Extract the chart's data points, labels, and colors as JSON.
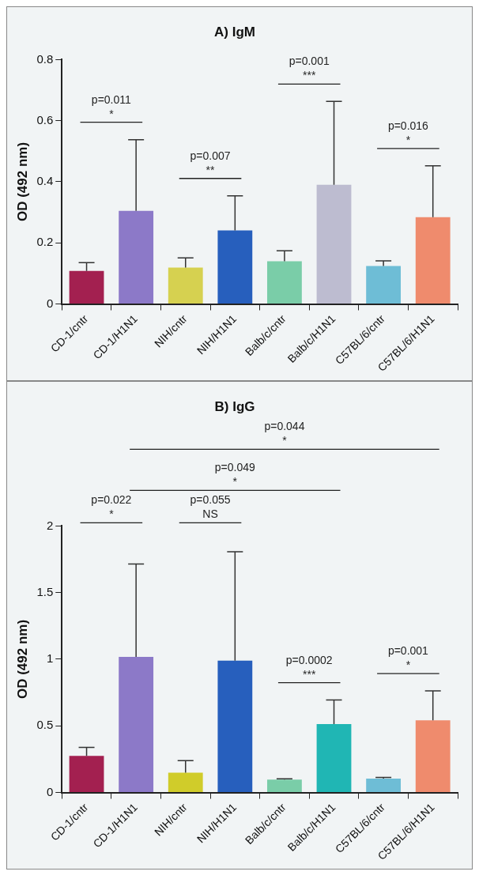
{
  "chart_data": [
    {
      "type": "bar",
      "title": "A) IgM",
      "ylabel": "OD (492 nm)",
      "categories": [
        "CD-1/cntr",
        "CD-1/H1N1",
        "NIH/cntr",
        "NIH/H1N1",
        "Balb/c/cntr",
        "Balb/c/H1N1",
        "C57BL/6/cntr",
        "C57BL/6/H1N1"
      ],
      "values": [
        0.108,
        0.305,
        0.119,
        0.241,
        0.14,
        0.39,
        0.124,
        0.284
      ],
      "colors": [
        "#a32050",
        "#8c79c8",
        "#d6d150",
        "#275fbd",
        "#7acda8",
        "#bdbcd0",
        "#6ebdd6",
        "#ef8b6d"
      ],
      "errors": [
        [
          0.108,
          0.135
        ],
        [
          0.305,
          0.538
        ],
        [
          0.119,
          0.151
        ],
        [
          0.241,
          0.354
        ],
        [
          0.14,
          0.174
        ],
        [
          0.39,
          0.663
        ],
        [
          0.124,
          0.141
        ],
        [
          0.284,
          0.452
        ]
      ],
      "ylim": [
        0,
        0.8
      ],
      "yticks": [
        0,
        0.2,
        0.4,
        0.6,
        0.8
      ],
      "grid": false,
      "legend": false,
      "annotations": [
        "p=0.011\n*",
        "p=0.007\n**",
        "p=0.001\n***",
        "p=0.016\n*"
      ]
    },
    {
      "type": "bar",
      "title": "B) IgG",
      "ylabel": "OD (492 nm)",
      "categories": [
        "CD-1/cntr",
        "CD-1/H1N1",
        "NIH/cntr",
        "NIH/H1N1",
        "Balb/c/cntr",
        "Balb/c/H1N1",
        "C57BL/6/cntr",
        "C57BL/6/H1N1"
      ],
      "values": [
        0.274,
        1.017,
        0.148,
        0.99,
        0.097,
        0.513,
        0.104,
        0.541
      ],
      "colors": [
        "#a32050",
        "#8c79c8",
        "#d0cc2a",
        "#275fbd",
        "#7acda8",
        "#20b6b4",
        "#6ebdd6",
        "#ef8b6d"
      ],
      "errors": [
        [
          0.274,
          0.338
        ],
        [
          1.017,
          1.715
        ],
        [
          0.148,
          0.239
        ],
        [
          0.99,
          1.806
        ],
        [
          0.097,
          0.102
        ],
        [
          0.513,
          0.694
        ],
        [
          0.104,
          0.113
        ],
        [
          0.541,
          0.762
        ]
      ],
      "ylim": [
        0,
        2
      ],
      "yticks": [
        0,
        0.5,
        1,
        1.5,
        2
      ],
      "grid": false,
      "legend": false,
      "annotations": [
        "p=0.022\n*",
        "p=0.055\nNS",
        "p=0.0002\n***",
        "p=0.001\n*",
        "p=0.049\n*",
        "p=0.044\n*"
      ]
    }
  ]
}
